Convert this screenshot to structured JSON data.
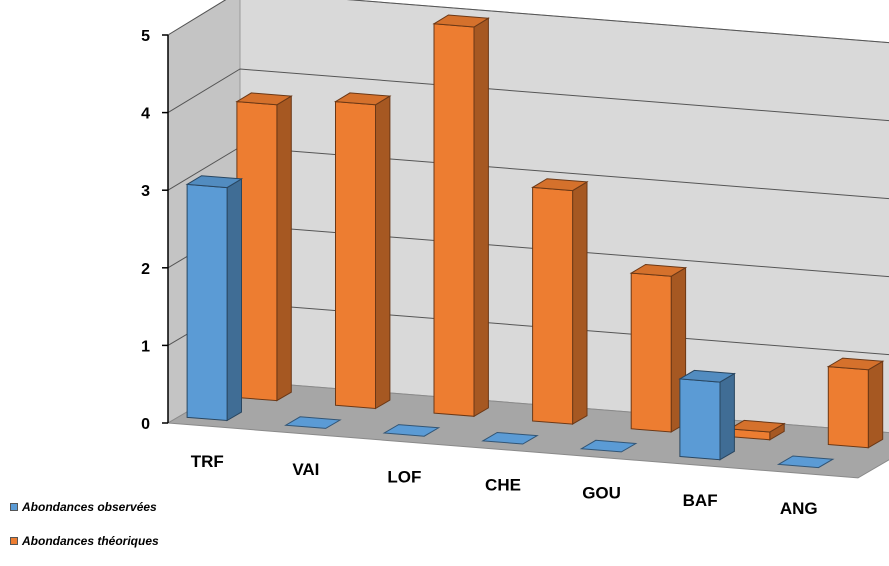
{
  "chart_data": {
    "type": "bar",
    "categories": [
      "TRF",
      "VAI",
      "LOF",
      "CHE",
      "GOU",
      "BAF",
      "ANG"
    ],
    "series": [
      {
        "name": "Abondances observées",
        "values": [
          3,
          0,
          0,
          0,
          0,
          1,
          0
        ],
        "color": "#5b9bd5"
      },
      {
        "name": "Abondances théoriques",
        "values": [
          3.8,
          3.9,
          5.0,
          3.0,
          2.0,
          0.1,
          1.0
        ],
        "color": "#ed7d31"
      }
    ],
    "yticks": [
      "0",
      "1",
      "2",
      "3",
      "4",
      "5"
    ],
    "ylim": [
      0,
      5
    ],
    "grid": true,
    "legend_position": "bottom-left",
    "style": "3d"
  }
}
